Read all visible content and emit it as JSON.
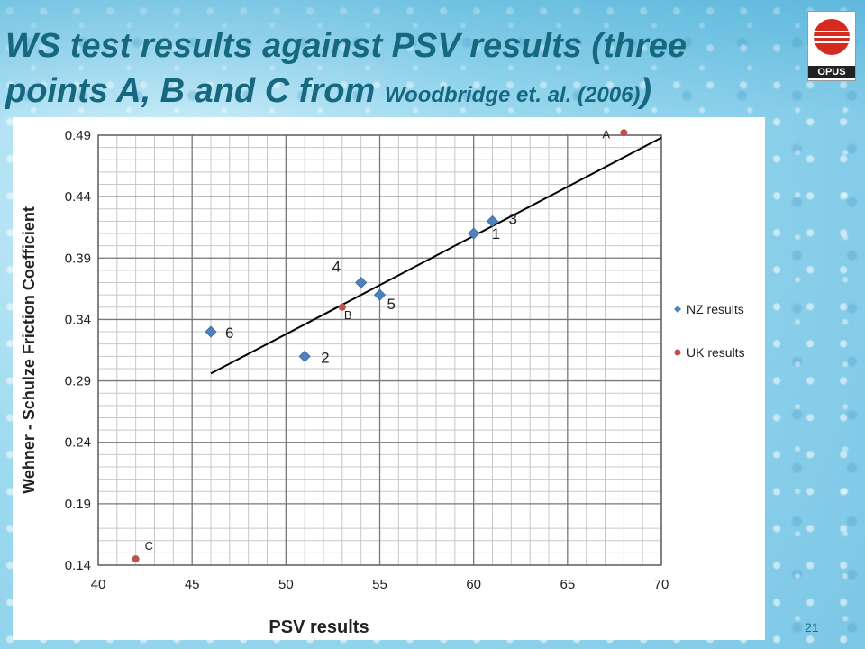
{
  "slide": {
    "title_main": "WS test results against PSV results (three points A, B and C from ",
    "title_small": "Woodbridge et. al. (2006)",
    "title_end": ")",
    "logo_text": "OPUS",
    "page_number": "21"
  },
  "chart_data": {
    "type": "scatter",
    "title": "",
    "xlabel": "PSV results",
    "ylabel": "Wehner - Schulze Friction Coefficient",
    "xlim": [
      40,
      70
    ],
    "ylim": [
      0.14,
      0.49
    ],
    "x_ticks": [
      40,
      45,
      50,
      55,
      60,
      65,
      70
    ],
    "y_ticks": [
      0.14,
      0.19,
      0.24,
      0.29,
      0.34,
      0.39,
      0.44,
      0.49
    ],
    "grid": true,
    "legend_position": "right",
    "series": [
      {
        "name": "NZ results",
        "marker": "diamond",
        "color": "#4f81bd",
        "points": [
          {
            "x": 60,
            "y": 0.41,
            "label": "1"
          },
          {
            "x": 51,
            "y": 0.31,
            "label": "2"
          },
          {
            "x": 61,
            "y": 0.42,
            "label": "3"
          },
          {
            "x": 54,
            "y": 0.37,
            "label": "4"
          },
          {
            "x": 55,
            "y": 0.36,
            "label": "5"
          },
          {
            "x": 46,
            "y": 0.33,
            "label": "6"
          }
        ]
      },
      {
        "name": "UK results",
        "marker": "circle",
        "color": "#c0504d",
        "points": [
          {
            "x": 68,
            "y": 0.492,
            "label": "A"
          },
          {
            "x": 53,
            "y": 0.35,
            "label": "B"
          },
          {
            "x": 42,
            "y": 0.145,
            "label": "C"
          }
        ]
      }
    ],
    "trendline": {
      "x": [
        46,
        70
      ],
      "y": [
        0.296,
        0.488
      ],
      "color": "#000000"
    }
  }
}
